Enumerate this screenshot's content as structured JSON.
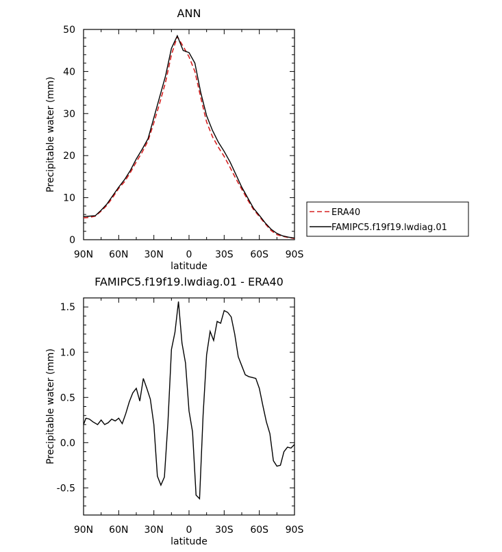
{
  "chart_data": [
    {
      "type": "line",
      "title": "ANN",
      "xlabel": "latitude",
      "ylabel": "Precipitable water (mm)",
      "xlim": [
        90,
        -90
      ],
      "ylim": [
        0,
        50
      ],
      "x_ticks": [
        90,
        60,
        30,
        0,
        -30,
        -60,
        -90
      ],
      "x_tick_labels": [
        "90N",
        "60N",
        "30N",
        "0",
        "30S",
        "60S",
        "90S"
      ],
      "y_ticks": [
        0,
        10,
        20,
        30,
        40,
        50
      ],
      "y_tick_labels": [
        "0",
        "10",
        "20",
        "30",
        "40",
        "50"
      ],
      "grid": false,
      "legend": {
        "placement": "right",
        "entries": [
          "ERA40",
          "FAMIPC5.f19f19.lwdiag.01"
        ]
      },
      "series": [
        {
          "name": "ERA40",
          "style": "dashed",
          "color": "#d62020",
          "x": [
            90,
            85,
            80,
            75,
            70,
            65,
            60,
            55,
            50,
            45,
            40,
            35,
            30,
            25,
            20,
            15,
            10,
            5,
            0,
            -5,
            -10,
            -15,
            -20,
            -25,
            -30,
            -35,
            -40,
            -45,
            -50,
            -55,
            -60,
            -65,
            -70,
            -75,
            -80,
            -85,
            -90
          ],
          "y": [
            5.2,
            5.3,
            5.6,
            6.8,
            8.2,
            10.1,
            12.2,
            13.8,
            16.0,
            18.5,
            20.8,
            23.5,
            27.8,
            32.5,
            37.5,
            44.0,
            48.3,
            46.0,
            43.5,
            40.0,
            33.8,
            28.0,
            24.5,
            22.0,
            19.8,
            17.2,
            14.5,
            12.0,
            9.5,
            7.2,
            5.5,
            3.8,
            2.2,
            1.2,
            0.8,
            0.5,
            0.3
          ]
        },
        {
          "name": "FAMIPC5.f19f19.lwdiag.01",
          "style": "solid",
          "color": "#000000",
          "x": [
            90,
            85,
            80,
            75,
            70,
            65,
            60,
            55,
            50,
            45,
            40,
            35,
            30,
            25,
            20,
            15,
            10,
            5,
            0,
            -5,
            -10,
            -15,
            -20,
            -25,
            -30,
            -35,
            -40,
            -45,
            -50,
            -55,
            -60,
            -65,
            -70,
            -75,
            -80,
            -85,
            -90
          ],
          "y": [
            5.5,
            5.6,
            5.7,
            7.0,
            8.5,
            10.5,
            12.5,
            14.3,
            16.5,
            19.2,
            21.5,
            24.0,
            29.0,
            34.0,
            39.0,
            45.5,
            48.5,
            45.0,
            44.5,
            42.0,
            35.0,
            29.5,
            26.0,
            23.2,
            21.0,
            18.5,
            15.5,
            12.5,
            10.0,
            7.5,
            5.8,
            4.0,
            2.5,
            1.5,
            0.9,
            0.6,
            0.4
          ]
        }
      ]
    },
    {
      "type": "line",
      "title": "FAMIPC5.f19f19.lwdiag.01 - ERA40",
      "xlabel": "latitude",
      "ylabel": "Precipitable water (mm)",
      "xlim": [
        90,
        -90
      ],
      "ylim": [
        -0.8,
        1.6
      ],
      "x_ticks": [
        90,
        60,
        30,
        0,
        -30,
        -60,
        -90
      ],
      "x_tick_labels": [
        "90N",
        "60N",
        "30N",
        "0",
        "30S",
        "60S",
        "90S"
      ],
      "y_ticks": [
        -0.5,
        0,
        0.5,
        1.0,
        1.5
      ],
      "y_tick_labels": [
        "-0.5",
        "0.0",
        "0.5",
        "1.0",
        "1.5"
      ],
      "grid": false,
      "series": [
        {
          "style": "solid",
          "color": "#000000",
          "x": [
            90,
            88,
            85,
            82,
            78,
            75,
            72,
            69,
            66,
            63,
            60,
            57,
            54,
            51,
            48,
            45,
            42,
            39,
            36,
            33,
            30,
            27,
            24,
            21,
            18,
            15,
            12,
            9,
            6,
            3,
            0,
            -3,
            -6,
            -9,
            -12,
            -15,
            -18,
            -21,
            -24,
            -27,
            -30,
            -33,
            -36,
            -39,
            -42,
            -45,
            -48,
            -51,
            -54,
            -57,
            -60,
            -63,
            -66,
            -69,
            -72,
            -75,
            -78,
            -81,
            -84,
            -87,
            -90
          ],
          "y": [
            0.2,
            0.27,
            0.26,
            0.23,
            0.2,
            0.25,
            0.2,
            0.22,
            0.26,
            0.24,
            0.27,
            0.21,
            0.32,
            0.45,
            0.55,
            0.6,
            0.46,
            0.71,
            0.6,
            0.48,
            0.2,
            -0.37,
            -0.47,
            -0.38,
            0.22,
            1.03,
            1.22,
            1.56,
            1.1,
            0.88,
            0.35,
            0.12,
            -0.58,
            -0.62,
            0.3,
            0.97,
            1.23,
            1.13,
            1.34,
            1.32,
            1.46,
            1.44,
            1.39,
            1.2,
            0.95,
            0.85,
            0.75,
            0.73,
            0.72,
            0.71,
            0.6,
            0.41,
            0.23,
            0.1,
            -0.2,
            -0.26,
            -0.25,
            -0.1,
            -0.05,
            -0.06,
            -0.02
          ]
        }
      ]
    }
  ]
}
